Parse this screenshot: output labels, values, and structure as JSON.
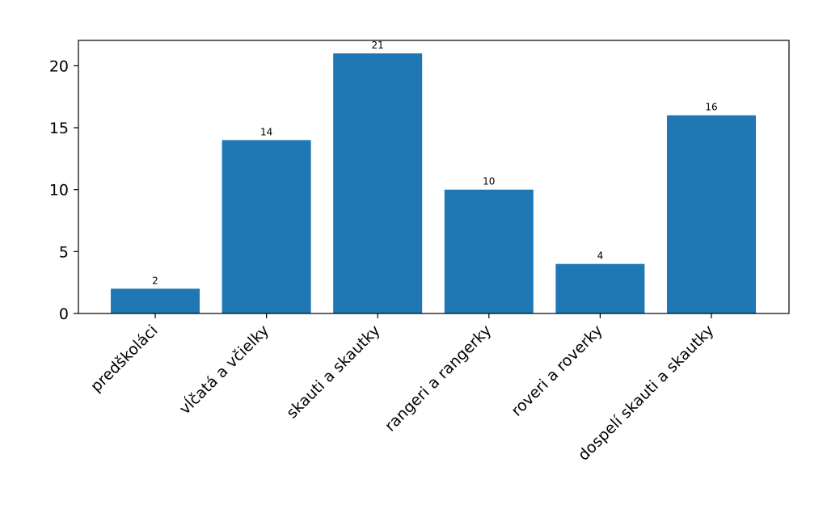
{
  "colors": {
    "bar": "#1f77b4",
    "axis": "#000000",
    "background": "#ffffff"
  },
  "chart_data": {
    "type": "bar",
    "categories": [
      "predškoláci",
      "vĺčatá a včielky",
      "skauti a skautky",
      "rangeri a rangerky",
      "roveri a roverky",
      "dospelí skauti a skautky"
    ],
    "values": [
      2,
      14,
      21,
      10,
      4,
      16
    ],
    "data_labels": [
      "2",
      "14",
      "21",
      "10",
      "4",
      "16"
    ],
    "y_ticks": [
      0,
      5,
      10,
      15,
      20
    ],
    "y_tick_labels": [
      "0",
      "5",
      "10",
      "15",
      "20"
    ],
    "ylim": [
      0,
      22.05
    ],
    "title": "",
    "xlabel": "",
    "ylabel": "",
    "grid": false,
    "legend": "none"
  }
}
